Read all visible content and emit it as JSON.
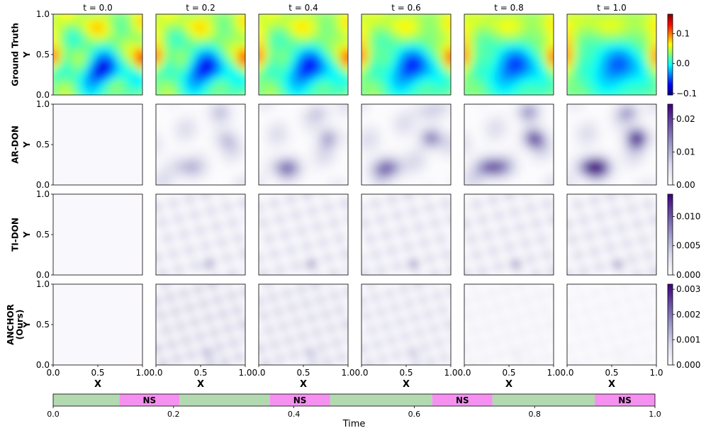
{
  "chart_data": {
    "type": "heatmap",
    "time_labels": [
      "t = 0.0",
      "t = 0.2",
      "t = 0.4",
      "t = 0.6",
      "t = 0.8",
      "t = 1.0"
    ],
    "time_values": [
      0.0,
      0.2,
      0.4,
      0.6,
      0.8,
      1.0
    ],
    "rows": [
      {
        "label": "Ground Truth",
        "label_lines": [
          "Ground Truth"
        ],
        "colormap": "jet",
        "cbar_ticks": [
          "0.1",
          "0.0",
          "−0.1"
        ],
        "cbar_tick_values": [
          0.1,
          0.0,
          -0.1
        ],
        "cbar_range": [
          -0.105,
          0.165
        ]
      },
      {
        "label": "AR-DON",
        "label_lines": [
          "AR-DON"
        ],
        "colormap": "purples",
        "cbar_ticks": [
          "0.02",
          "0.01",
          "0.00"
        ],
        "cbar_tick_values": [
          0.02,
          0.01,
          0.0
        ],
        "cbar_range": [
          0.0,
          0.0245
        ]
      },
      {
        "label": "TI-DON",
        "label_lines": [
          "TI-DON"
        ],
        "colormap": "purples",
        "cbar_ticks": [
          "0.010",
          "0.005",
          "0.000"
        ],
        "cbar_tick_values": [
          0.01,
          0.005,
          0.0
        ],
        "cbar_range": [
          0.0,
          0.0138
        ]
      },
      {
        "label": "ANCHOR (Ours)",
        "label_lines": [
          "ANCHOR",
          "(Ours)"
        ],
        "colormap": "purples",
        "cbar_ticks": [
          "0.003",
          "0.002",
          "0.001",
          "0.000"
        ],
        "cbar_tick_values": [
          0.003,
          0.002,
          0.001,
          0.0
        ],
        "cbar_range": [
          0.0,
          0.0032
        ]
      }
    ],
    "xlabel": "X",
    "ylabel": "Y",
    "x_ticks": [
      "0.0",
      "0.5",
      "1.0"
    ],
    "y_ticks": [
      "0.0",
      "0.5",
      "1.0"
    ],
    "timeline": {
      "xlabel": "Time",
      "ticks": [
        "0.0",
        "0.2",
        "0.4",
        "0.6",
        "0.8",
        "1.0"
      ],
      "tick_values": [
        0.0,
        0.2,
        0.4,
        0.6,
        0.8,
        1.0
      ],
      "segments": [
        {
          "start": 0.0,
          "end": 0.11,
          "label": "",
          "color": "#b3d9b0"
        },
        {
          "start": 0.11,
          "end": 0.21,
          "label": "NS",
          "color": "#f590f0"
        },
        {
          "start": 0.21,
          "end": 0.36,
          "label": "",
          "color": "#b3d9b0"
        },
        {
          "start": 0.36,
          "end": 0.46,
          "label": "NS",
          "color": "#f590f0"
        },
        {
          "start": 0.46,
          "end": 0.63,
          "label": "",
          "color": "#b3d9b0"
        },
        {
          "start": 0.63,
          "end": 0.73,
          "label": "NS",
          "color": "#f590f0"
        },
        {
          "start": 0.73,
          "end": 0.9,
          "label": "",
          "color": "#b3d9b0"
        },
        {
          "start": 0.9,
          "end": 1.0,
          "label": "NS",
          "color": "#f590f0"
        }
      ]
    }
  }
}
